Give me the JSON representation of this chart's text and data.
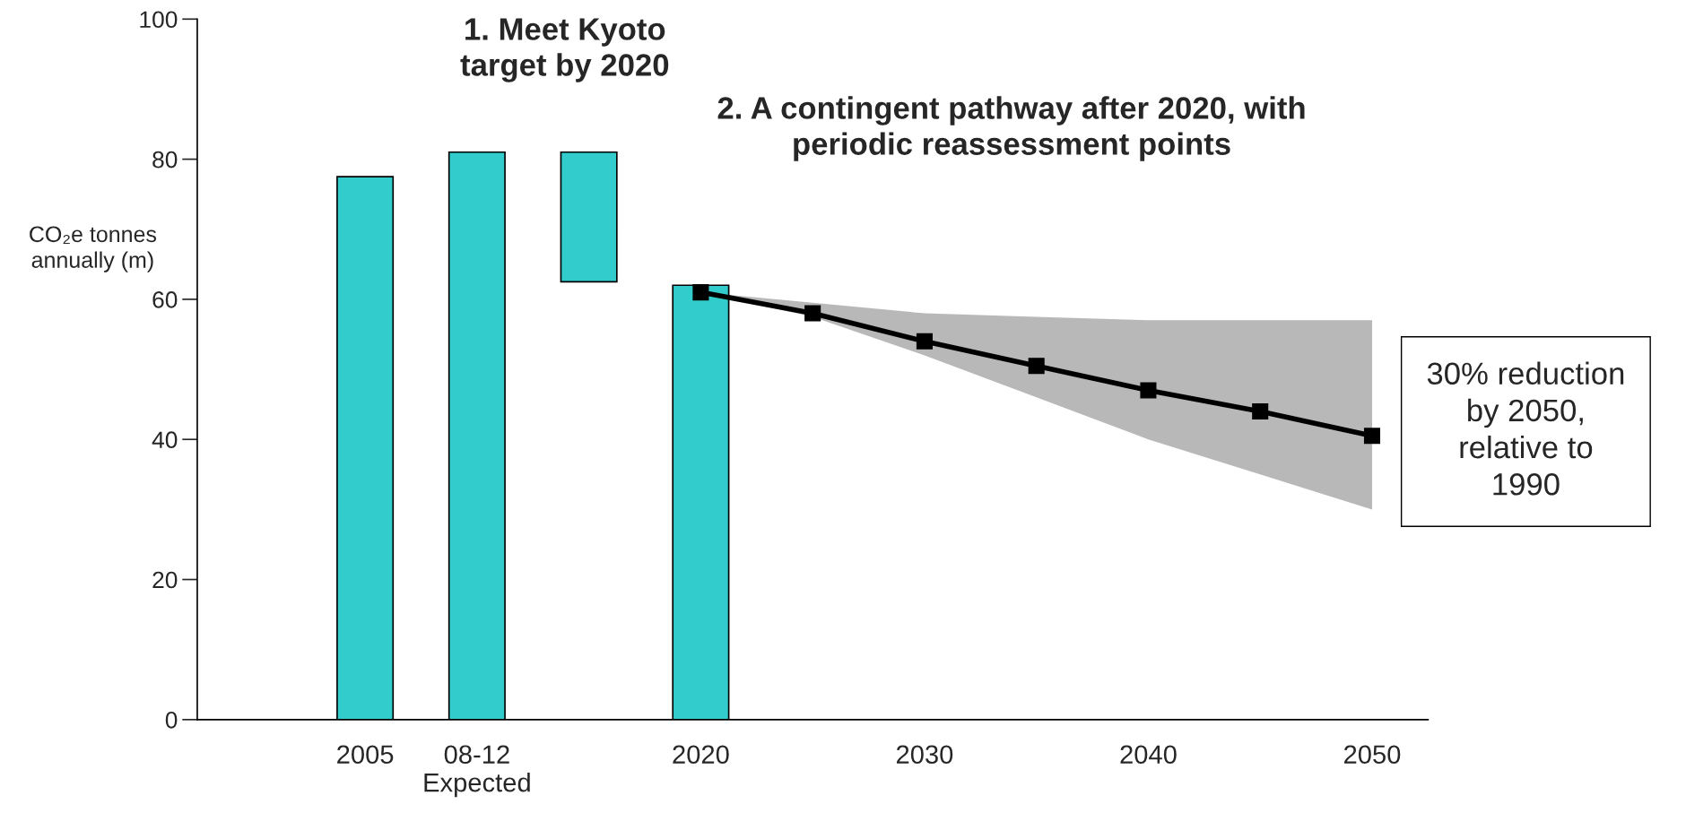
{
  "chart_data": {
    "type": "bar",
    "categories": [
      null,
      "2005",
      "08-12\nExpected",
      null,
      "2020",
      null,
      "2030",
      null,
      "2040",
      null,
      "2050"
    ],
    "ylabel": "CO₂e tonnes\nannually (m)",
    "ylim": [
      0,
      100
    ],
    "yticks": [
      0,
      20,
      40,
      60,
      80,
      100
    ],
    "series": [
      {
        "color": "#33cccc",
        "values": [
          null,
          77.5,
          81,
          18.5,
          62,
          null,
          null,
          null,
          null,
          null,
          null
        ],
        "base": [
          null,
          0,
          0,
          62.5,
          0,
          null,
          null,
          null,
          null,
          null,
          null
        ]
      },
      {
        "type": "line",
        "color": "#000000",
        "marker": "square",
        "values": [
          null,
          null,
          null,
          null,
          61,
          58,
          54,
          50.5,
          47,
          44,
          40.5
        ],
        "lower": [
          null,
          null,
          null,
          null,
          61,
          57.5,
          52,
          46,
          40,
          35,
          30
        ],
        "upper": [
          null,
          null,
          null,
          null,
          61,
          59.5,
          58,
          57.5,
          57,
          57,
          57
        ]
      }
    ],
    "annotations": [
      "1. Meet Kyoto\ntarget by 2020",
      "2. A contingent pathway after 2020, with\nperiodic reassessment points",
      "30% reduction\nby 2050,\nrelative to\n1990"
    ],
    "grid": false
  }
}
